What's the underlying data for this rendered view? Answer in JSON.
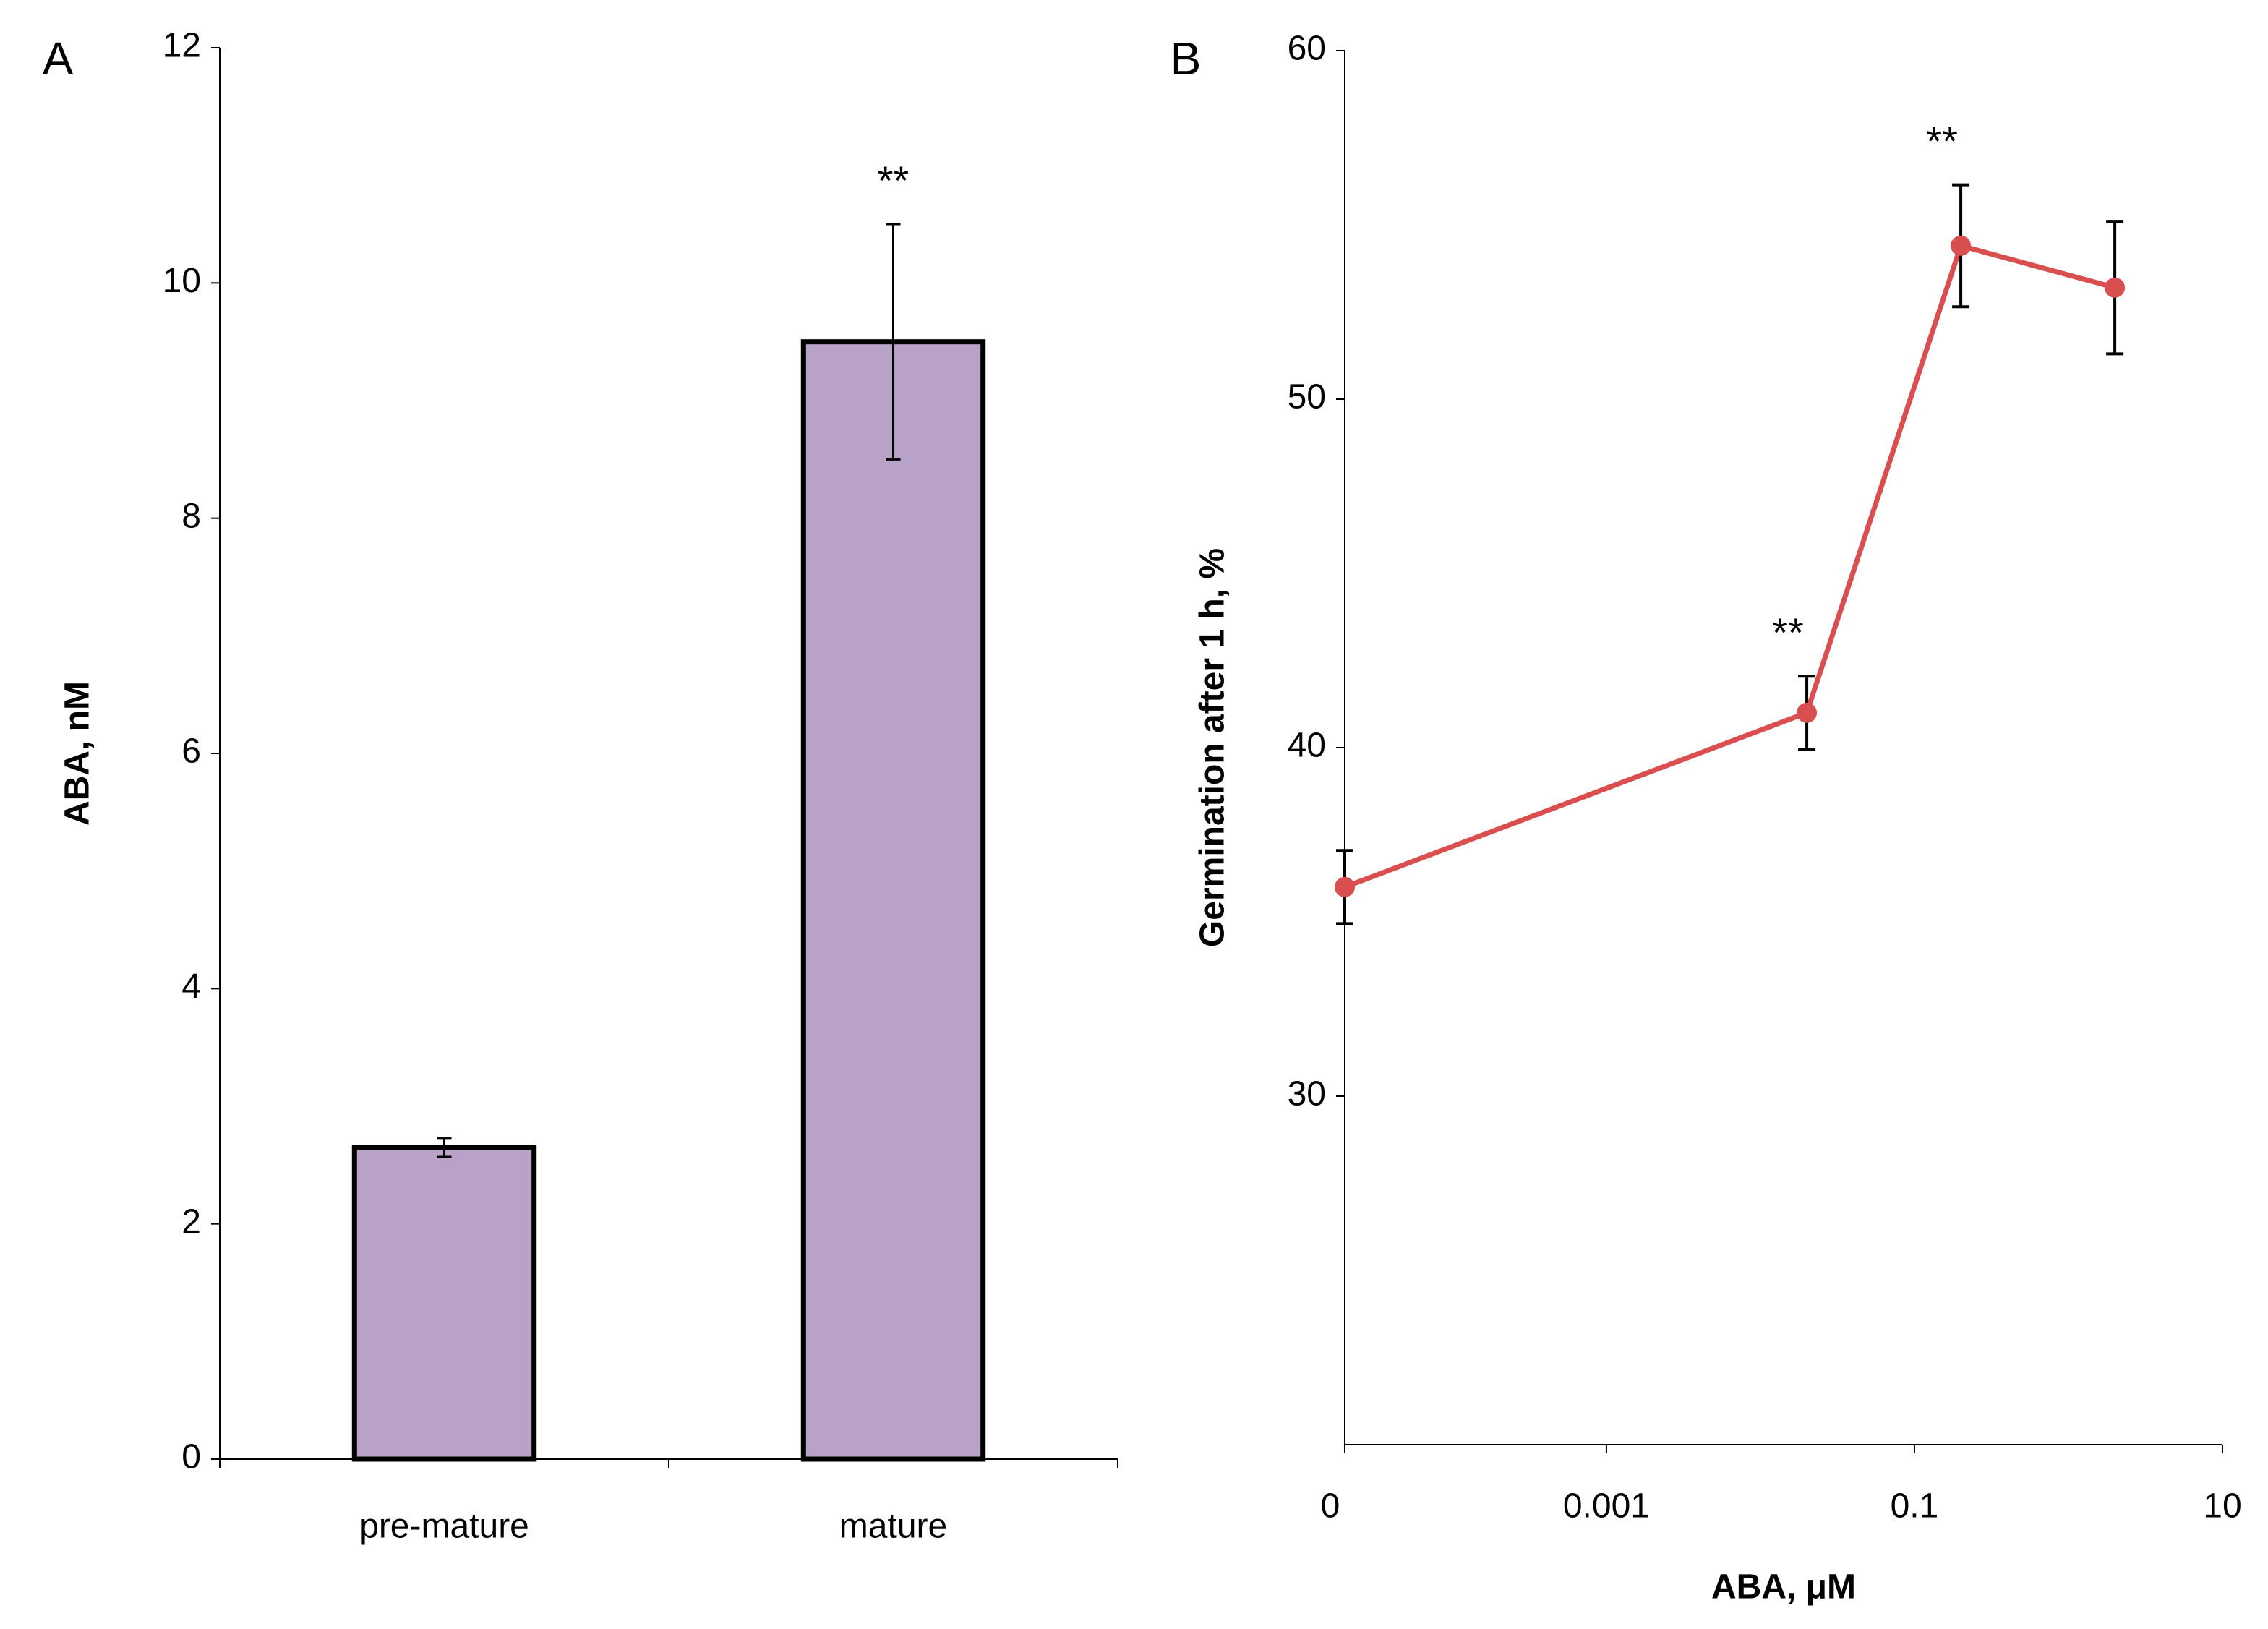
{
  "chart_data": [
    {
      "type": "bar",
      "panel": "A",
      "ylabel": "ABA, nM",
      "categories": [
        "pre-mature",
        "mature"
      ],
      "values": [
        2.65,
        9.5
      ],
      "errors": [
        0.08,
        1.0
      ],
      "color": "#b8a2c8",
      "ylim": [
        0,
        12
      ],
      "yticks": [
        0,
        2,
        4,
        6,
        8,
        10,
        12
      ],
      "annotations": [
        {
          "text": "**",
          "category": "mature"
        }
      ]
    },
    {
      "type": "line",
      "panel": "B",
      "ylabel": "Germination after 1 h, %",
      "xlabel": "ABA, μM",
      "log_x": true,
      "xlim": [
        2e-05,
        10
      ],
      "xticks": [
        {
          "value": 2e-05,
          "label": "0"
        },
        0.001,
        0.1,
        10
      ],
      "ylim": [
        20,
        60
      ],
      "yticks": [
        30,
        40,
        50,
        60
      ],
      "x": [
        2e-05,
        0.02,
        0.2,
        2
      ],
      "series": [
        {
          "color": "#d94f4f",
          "values": [
            36.0,
            41.0,
            54.4,
            53.2
          ],
          "errors": [
            1.05,
            1.05,
            1.75,
            1.9
          ]
        }
      ],
      "annotations": [
        {
          "text": "**",
          "x": 0.02
        },
        {
          "text": "**",
          "x": 0.2
        }
      ]
    }
  ]
}
